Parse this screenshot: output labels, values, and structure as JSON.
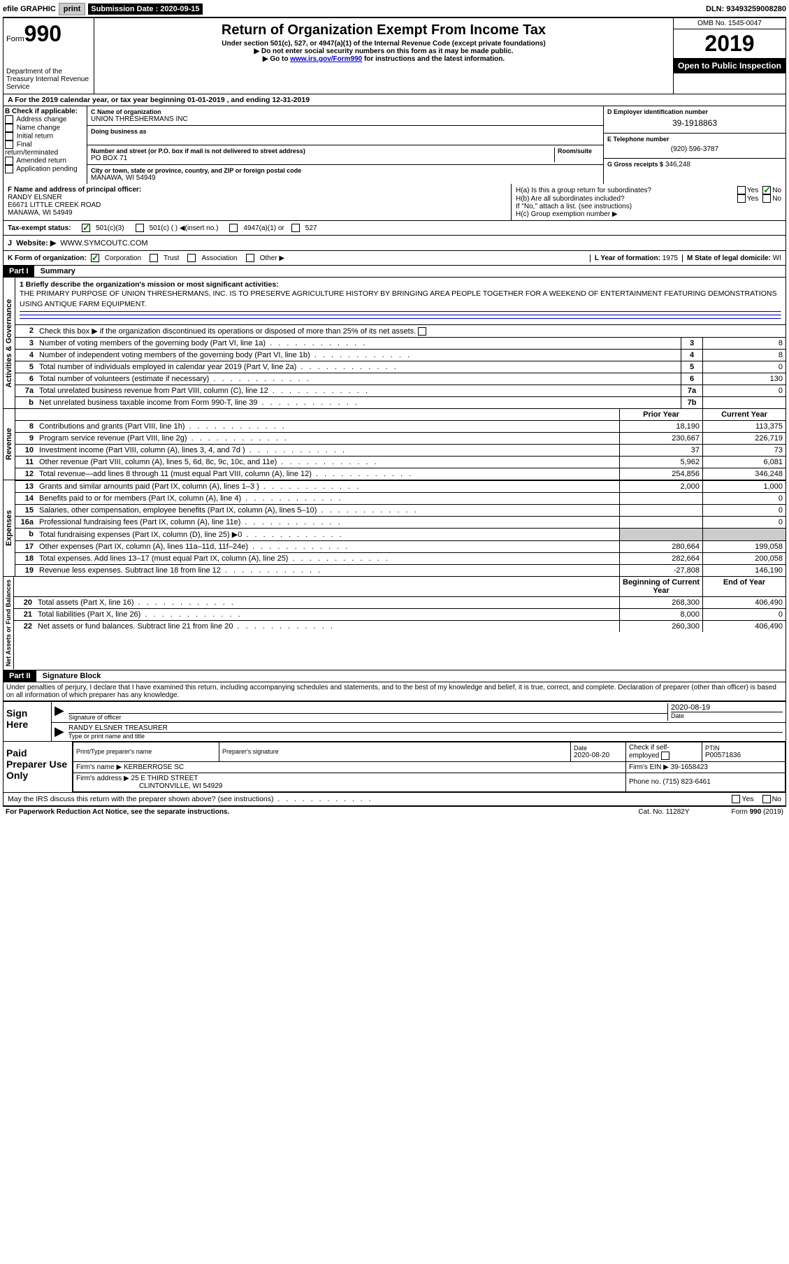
{
  "topbar": {
    "efile_label": "efile GRAPHIC",
    "print_btn": "print",
    "sub_label": "Submission Date : 2020-09-15",
    "dln": "DLN: 93493259008280"
  },
  "header": {
    "form_prefix": "Form",
    "form_num": "990",
    "dept": "Department of the Treasury\nInternal Revenue Service",
    "title": "Return of Organization Exempt From Income Tax",
    "sub1": "Under section 501(c), 527, or 4947(a)(1) of the Internal Revenue Code (except private foundations)",
    "sub2": "▶ Do not enter social security numbers on this form as it may be made public.",
    "sub3_pre": "▶ Go to ",
    "sub3_link": "www.irs.gov/Form990",
    "sub3_post": " for instructions and the latest information.",
    "omb": "OMB No. 1545-0047",
    "year": "2019",
    "open": "Open to Public Inspection"
  },
  "periodA": "A For the 2019 calendar year, or tax year beginning 01-01-2019    , and ending 12-31-2019",
  "boxB": {
    "label": "B Check if applicable:",
    "items": [
      "Address change",
      "Name change",
      "Initial return",
      "Final return/terminated",
      "Amended return",
      "Application pending"
    ]
  },
  "boxC": {
    "name_label": "C Name of organization",
    "name": "UNION THRESHERMANS INC",
    "dba_label": "Doing business as",
    "addr_label": "Number and street (or P.O. box if mail is not delivered to street address)",
    "room_label": "Room/suite",
    "addr": "PO BOX 71",
    "city_label": "City or town, state or province, country, and ZIP or foreign postal code",
    "city": "MANAWA, WI  54949"
  },
  "boxD": {
    "label": "D Employer identification number",
    "value": "39-1918863"
  },
  "boxE": {
    "label": "E Telephone number",
    "value": "(920) 596-3787"
  },
  "boxG": {
    "label": "G Gross receipts $",
    "value": "346,248"
  },
  "boxF": {
    "label": "F  Name and address of principal officer:",
    "name": "RANDY ELSNER",
    "addr1": "E6671 LITTLE CREEK ROAD",
    "addr2": "MANAWA, WI  54949"
  },
  "boxH": {
    "ha_label": "H(a)  Is this a group return for subordinates?",
    "ha_yes": "Yes",
    "ha_no": "No",
    "hb_label": "H(b)  Are all subordinates included?",
    "hb_note": "If \"No,\" attach a list. (see instructions)",
    "hc_label": "H(c)  Group exemption number ▶"
  },
  "taxStatus": {
    "label": "Tax-exempt status:",
    "c3": "501(c)(3)",
    "c_blank": "501(c) (  ) ◀(insert no.)",
    "c4947": "4947(a)(1) or",
    "c527": "527"
  },
  "boxI": {
    "label": "I",
    "text": "Tax-exempt status:"
  },
  "boxJ": {
    "label": "J",
    "web_label": "Website: ▶",
    "web": "WWW.SYMCOUTC.COM"
  },
  "boxK": {
    "label": "K Form of organization:",
    "corp": "Corporation",
    "trust": "Trust",
    "assoc": "Association",
    "other": "Other ▶"
  },
  "boxL": {
    "label": "L Year of formation:",
    "value": "1975"
  },
  "boxM": {
    "label": "M State of legal domicile:",
    "value": "WI"
  },
  "part1": {
    "header": "Part I",
    "title": "Summary",
    "line1_label": "1  Briefly describe the organization's mission or most significant activities:",
    "mission": "THE PRIMARY PURPOSE OF UNION THRESHERMANS, INC. IS TO PRESERVE AGRICULTURE HISTORY BY BRINGING AREA PEOPLE TOGETHER FOR A WEEKEND OF ENTERTAINMENT FEATURING DEMONSTRATIONS USING ANTIQUE FARM EQUIPMENT.",
    "line2": "Check this box ▶      if the organization discontinued its operations or disposed of more than 25% of its net assets.",
    "rows_gov": [
      {
        "n": "3",
        "label": "Number of voting members of the governing body (Part VI, line 1a)",
        "box": "3",
        "val": "8"
      },
      {
        "n": "4",
        "label": "Number of independent voting members of the governing body (Part VI, line 1b)",
        "box": "4",
        "val": "8"
      },
      {
        "n": "5",
        "label": "Total number of individuals employed in calendar year 2019 (Part V, line 2a)",
        "box": "5",
        "val": "0"
      },
      {
        "n": "6",
        "label": "Total number of volunteers (estimate if necessary)",
        "box": "6",
        "val": "130"
      },
      {
        "n": "7a",
        "label": "Total unrelated business revenue from Part VIII, column (C), line 12",
        "box": "7a",
        "val": "0"
      },
      {
        "n": "b",
        "label": "Net unrelated business taxable income from Form 990-T, line 39",
        "box": "7b",
        "val": ""
      }
    ],
    "col_prior": "Prior Year",
    "col_current": "Current Year",
    "rows_rev": [
      {
        "n": "8",
        "label": "Contributions and grants (Part VIII, line 1h)",
        "p": "18,190",
        "c": "113,375"
      },
      {
        "n": "9",
        "label": "Program service revenue (Part VIII, line 2g)",
        "p": "230,667",
        "c": "226,719"
      },
      {
        "n": "10",
        "label": "Investment income (Part VIII, column (A), lines 3, 4, and 7d )",
        "p": "37",
        "c": "73"
      },
      {
        "n": "11",
        "label": "Other revenue (Part VIII, column (A), lines 5, 6d, 8c, 9c, 10c, and 11e)",
        "p": "5,962",
        "c": "6,081"
      },
      {
        "n": "12",
        "label": "Total revenue—add lines 8 through 11 (must equal Part VIII, column (A), line 12)",
        "p": "254,856",
        "c": "346,248"
      }
    ],
    "rows_exp": [
      {
        "n": "13",
        "label": "Grants and similar amounts paid (Part IX, column (A), lines 1–3 )",
        "p": "2,000",
        "c": "1,000"
      },
      {
        "n": "14",
        "label": "Benefits paid to or for members (Part IX, column (A), line 4)",
        "p": "",
        "c": "0"
      },
      {
        "n": "15",
        "label": "Salaries, other compensation, employee benefits (Part IX, column (A), lines 5–10)",
        "p": "",
        "c": "0"
      },
      {
        "n": "16a",
        "label": "Professional fundraising fees (Part IX, column (A), line 11e)",
        "p": "",
        "c": "0"
      },
      {
        "n": "b",
        "label": "Total fundraising expenses (Part IX, column (D), line 25) ▶0",
        "p": "",
        "c": "",
        "gray": true
      },
      {
        "n": "17",
        "label": "Other expenses (Part IX, column (A), lines 11a–11d, 11f–24e)",
        "p": "280,664",
        "c": "199,058"
      },
      {
        "n": "18",
        "label": "Total expenses. Add lines 13–17 (must equal Part IX, column (A), line 25)",
        "p": "282,664",
        "c": "200,058"
      },
      {
        "n": "19",
        "label": "Revenue less expenses. Subtract line 18 from line 12",
        "p": "-27,808",
        "c": "146,190"
      }
    ],
    "col_begin": "Beginning of Current Year",
    "col_end": "End of Year",
    "rows_net": [
      {
        "n": "20",
        "label": "Total assets (Part X, line 16)",
        "p": "268,300",
        "c": "406,490"
      },
      {
        "n": "21",
        "label": "Total liabilities (Part X, line 26)",
        "p": "8,000",
        "c": "0"
      },
      {
        "n": "22",
        "label": "Net assets or fund balances. Subtract line 21 from line 20",
        "p": "260,300",
        "c": "406,490"
      }
    ],
    "side_gov": "Activities & Governance",
    "side_rev": "Revenue",
    "side_exp": "Expenses",
    "side_net": "Net Assets or Fund Balances"
  },
  "part2": {
    "header": "Part II",
    "title": "Signature Block",
    "jurat": "Under penalties of perjury, I declare that I have examined this return, including accompanying schedules and statements, and to the best of my knowledge and belief, it is true, correct, and complete. Declaration of preparer (other than officer) is based on all information of which preparer has any knowledge.",
    "sign_here": "Sign Here",
    "sig_officer": "Signature of officer",
    "date_label": "Date",
    "sig_date": "2020-08-19",
    "officer_name": "RANDY ELSNER  TREASURER",
    "type_name": "Type or print name and title",
    "paid_prep": "Paid Preparer Use Only",
    "prep_name_label": "Print/Type preparer's name",
    "prep_sig_label": "Preparer's signature",
    "prep_date_label": "Date",
    "prep_date": "2020-08-20",
    "self_emp": "Check      if self-employed",
    "ptin_label": "PTIN",
    "ptin": "P00571836",
    "firm_name_label": "Firm's name    ▶",
    "firm_name": "KERBERROSE SC",
    "firm_ein_label": "Firm's EIN ▶",
    "firm_ein": "39-1658423",
    "firm_addr_label": "Firm's address ▶",
    "firm_addr": "25 E THIRD STREET",
    "firm_city": "CLINTONVILLE, WI  54929",
    "phone_label": "Phone no.",
    "phone": "(715) 823-6461",
    "discuss": "May the IRS discuss this return with the preparer shown above? (see instructions)",
    "yes": "Yes",
    "no": "No"
  },
  "footer": {
    "left": "For Paperwork Reduction Act Notice, see the separate instructions.",
    "center": "Cat. No. 11282Y",
    "right": "Form 990 (2019)"
  }
}
